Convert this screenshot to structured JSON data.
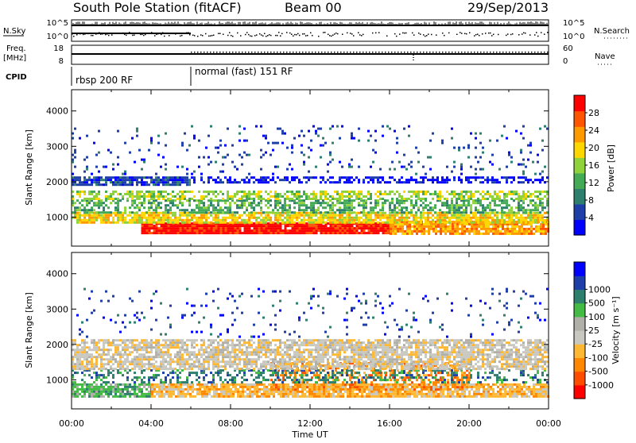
{
  "header": {
    "station": "South Pole Station (fitACF)",
    "beam": "Beam 00",
    "date": "29/Sep/2013"
  },
  "summary_panels": {
    "nsky": {
      "label": "N.Sky",
      "ticks": [
        "10^5",
        "10^0"
      ]
    },
    "nsearch": {
      "label": "N.Search",
      "ticks": [
        "10^5",
        "10^0"
      ]
    },
    "freq": {
      "label_line1": "Freq.",
      "label_line2": "[MHz]",
      "ticks": [
        "18",
        "8"
      ]
    },
    "nave": {
      "label": "Nave",
      "ticks": [
        "60",
        "0"
      ]
    },
    "cpid": {
      "label": "CPID",
      "modes": [
        {
          "name": "rbsp 200 RF",
          "start_hour": 0
        },
        {
          "name": "normal (fast) 151 RF",
          "start_hour": 6
        }
      ]
    }
  },
  "chart_data": [
    {
      "type": "heatmap",
      "name": "power-panel",
      "ylabel": "Slant Range [km]",
      "xlim": [
        0,
        24
      ],
      "ylim": [
        180,
        4600
      ],
      "yticks": [
        1000,
        2000,
        3000,
        4000
      ],
      "colorbar": {
        "label": "Power [dB]",
        "colors": [
          "#0000ff",
          "#1f3fa8",
          "#2e7f6e",
          "#44aa55",
          "#8fd23c",
          "#ffd700",
          "#ff9900",
          "#ff5500",
          "#ff0000"
        ],
        "ticks": [
          4,
          8,
          12,
          16,
          20,
          24,
          28
        ],
        "range": [
          0,
          32
        ]
      },
      "bands": [
        {
          "range": [
            550,
            850
          ],
          "color_index": 8,
          "density": 0.97,
          "t0": 3.5,
          "t1": 16
        },
        {
          "range": [
            500,
            900
          ],
          "color_index": 6,
          "density": 0.85,
          "t0": 16,
          "t1": 24
        },
        {
          "range": [
            850,
            1150
          ],
          "color_index": 5,
          "density": 0.8,
          "t0": 0,
          "t1": 24
        },
        {
          "range": [
            1150,
            1500
          ],
          "color_index": 3,
          "density": 0.6,
          "t0": 0,
          "t1": 24
        },
        {
          "range": [
            1500,
            1750
          ],
          "color_index": 4,
          "density": 0.6,
          "t0": 0,
          "t1": 24
        },
        {
          "range": [
            1900,
            2150
          ],
          "color_index": 1,
          "density": 0.8,
          "t0": 0,
          "t1": 6
        },
        {
          "range": [
            1950,
            2150
          ],
          "color_index": 0,
          "density": 0.55,
          "t0": 6,
          "t1": 24
        },
        {
          "range": [
            2200,
            3600
          ],
          "color_index": 1,
          "density": 0.08,
          "t0": 0,
          "t1": 24
        }
      ]
    },
    {
      "type": "heatmap",
      "name": "velocity-panel",
      "xlabel": "Time UT",
      "ylabel": "Slant Range [km]",
      "xlim": [
        0,
        24
      ],
      "ylim": [
        180,
        4600
      ],
      "yticks": [
        1000,
        2000,
        3000,
        4000
      ],
      "xticks": [
        "00:00",
        "04:00",
        "08:00",
        "12:00",
        "16:00",
        "20:00",
        "00:00"
      ],
      "colorbar": {
        "label": "Velocity [m s⁻¹]",
        "colors": [
          "#ff0000",
          "#ff4d00",
          "#ff8800",
          "#ffb833",
          "#c8c8c0",
          "#b0b0a8",
          "#44bb44",
          "#2e7f6e",
          "#1f3fa8",
          "#0000ff"
        ],
        "ticks": [
          "-1000",
          "-500",
          "-100",
          "-25",
          "25",
          "100",
          "500",
          "1000"
        ]
      },
      "bands": [
        {
          "range": [
            550,
            900
          ],
          "color_index": 6,
          "density": 0.85,
          "t0": 0,
          "t1": 4
        },
        {
          "range": [
            550,
            900
          ],
          "color_index": 3,
          "density": 0.85,
          "t0": 4,
          "t1": 24
        },
        {
          "range": [
            700,
            1500
          ],
          "color_index": 2,
          "density": 0.45,
          "t0": 10,
          "t1": 20
        },
        {
          "range": [
            900,
            1300
          ],
          "color_index": 7,
          "density": 0.35,
          "t0": 0,
          "t1": 24
        },
        {
          "range": [
            1300,
            2150
          ],
          "color_index": 4,
          "density": 0.75,
          "t0": 0,
          "t1": 24
        },
        {
          "range": [
            2200,
            3600
          ],
          "color_index": 8,
          "density": 0.06,
          "t0": 0,
          "t1": 24
        }
      ]
    }
  ]
}
